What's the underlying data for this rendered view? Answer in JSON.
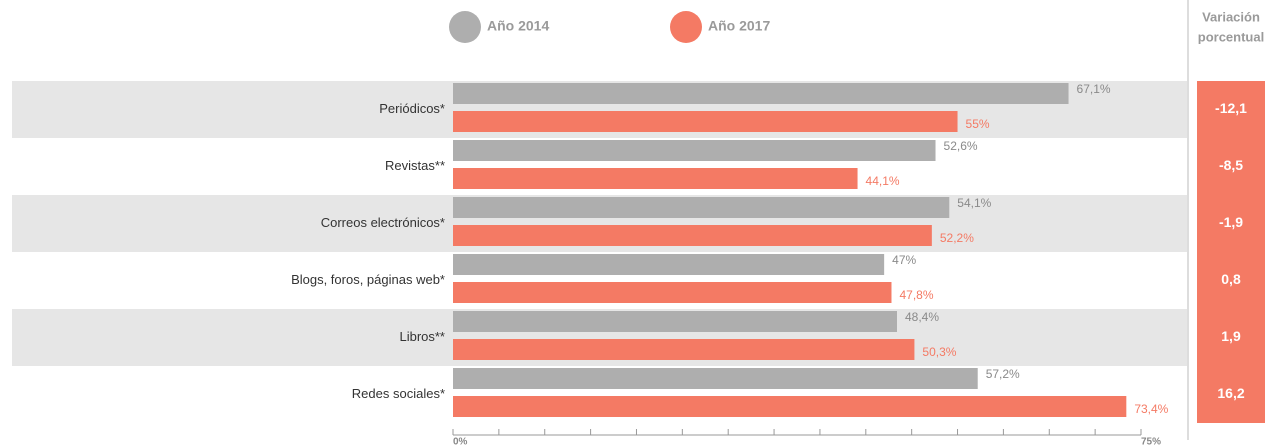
{
  "chart_data": {
    "type": "bar",
    "orientation": "horizontal",
    "categories": [
      "Periódicos*",
      "Revistas**",
      "Correos electrónicos*",
      "Blogs, foros, páginas web*",
      "Libros**",
      "Redes sociales*"
    ],
    "series": [
      {
        "name": "Año 2014",
        "color": "#aeaeae",
        "values": [
          67.1,
          52.6,
          54.1,
          47,
          48.4,
          57.2
        ],
        "value_labels": [
          "67,1%",
          "52,6%",
          "54,1%",
          "47%",
          "48,4%",
          "57,2%"
        ]
      },
      {
        "name": "Año 2017",
        "color": "#f47a64",
        "values": [
          55,
          44.1,
          52.2,
          47.8,
          50.3,
          73.4
        ],
        "value_labels": [
          "55%",
          "44,1%",
          "52,2%",
          "47,8%",
          "50,3%",
          "73,4%"
        ]
      }
    ],
    "variation": {
      "title": [
        "Variación",
        "porcentual"
      ],
      "color": "#f47a64",
      "values": [
        -12.1,
        -8.5,
        -1.9,
        0.8,
        1.9,
        16.2
      ],
      "value_labels": [
        "-12,1",
        "-8,5",
        "-1,9",
        "0,8",
        "1,9",
        "16,2"
      ]
    },
    "xlim": [
      0,
      75
    ],
    "xticks": [
      {
        "value": 0,
        "label": "0%"
      },
      {
        "value": 75,
        "label": "75%"
      }
    ],
    "xminorticks": [
      5,
      10,
      15,
      20,
      25,
      30,
      35,
      40,
      45,
      50,
      55,
      60,
      65,
      70
    ],
    "band_color": "#e6e6e6"
  }
}
